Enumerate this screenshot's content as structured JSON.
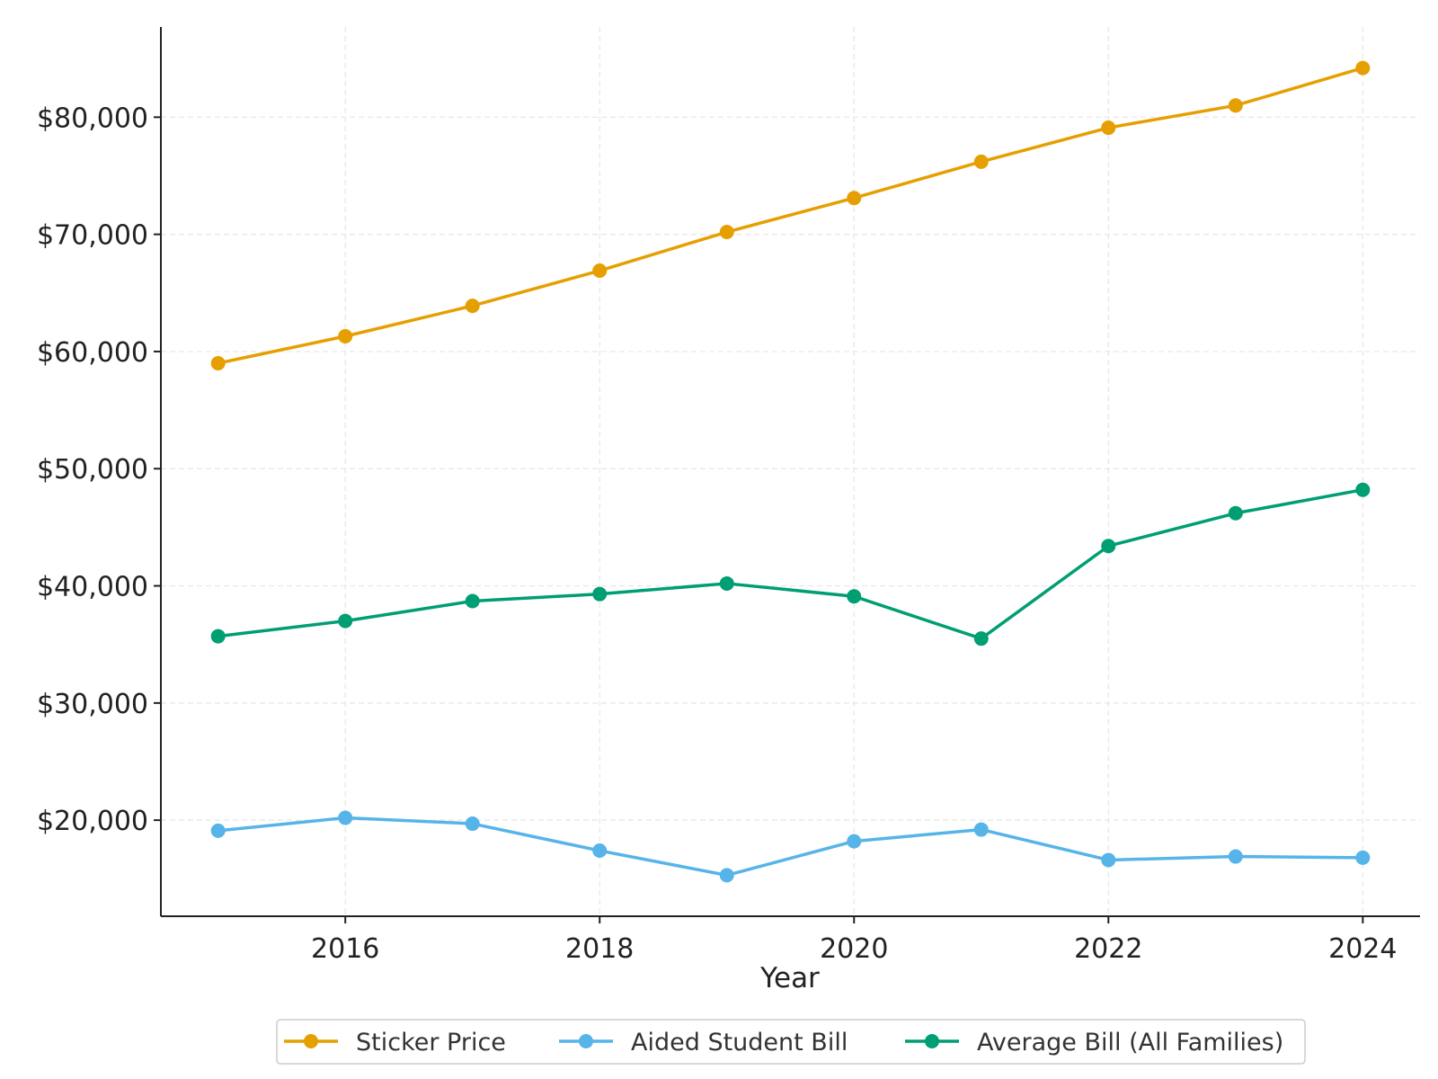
{
  "chart_data": {
    "type": "line",
    "title": "",
    "xlabel": "Year",
    "ylabel": "",
    "x": [
      2015,
      2016,
      2017,
      2018,
      2019,
      2020,
      2021,
      2022,
      2023,
      2024
    ],
    "xlim": [
      2014.55,
      2024.45
    ],
    "ylim": [
      11800,
      87700
    ],
    "xticks": [
      2016,
      2018,
      2020,
      2022,
      2024
    ],
    "xtick_labels": [
      "2016",
      "2018",
      "2020",
      "2022",
      "2024"
    ],
    "yticks": [
      20000,
      30000,
      40000,
      50000,
      60000,
      70000,
      80000
    ],
    "ytick_labels": [
      "$20,000",
      "$30,000",
      "$40,000",
      "$50,000",
      "$60,000",
      "$70,000",
      "$80,000"
    ],
    "grid": true,
    "legend_position": "bottom-center",
    "series": [
      {
        "name": "Sticker Price",
        "color": "#E69F00",
        "values": [
          59000,
          61300,
          63900,
          66900,
          70200,
          73100,
          76200,
          79100,
          81000,
          84200
        ]
      },
      {
        "name": "Aided Student Bill",
        "color": "#56B4E9",
        "values": [
          19100,
          20200,
          19700,
          17400,
          15300,
          18200,
          19200,
          16600,
          16900,
          16800
        ]
      },
      {
        "name": "Average Bill (All Families)",
        "color": "#009E73",
        "values": [
          35700,
          37000,
          38700,
          39300,
          40200,
          39100,
          35500,
          43400,
          46200,
          48200
        ]
      }
    ]
  }
}
